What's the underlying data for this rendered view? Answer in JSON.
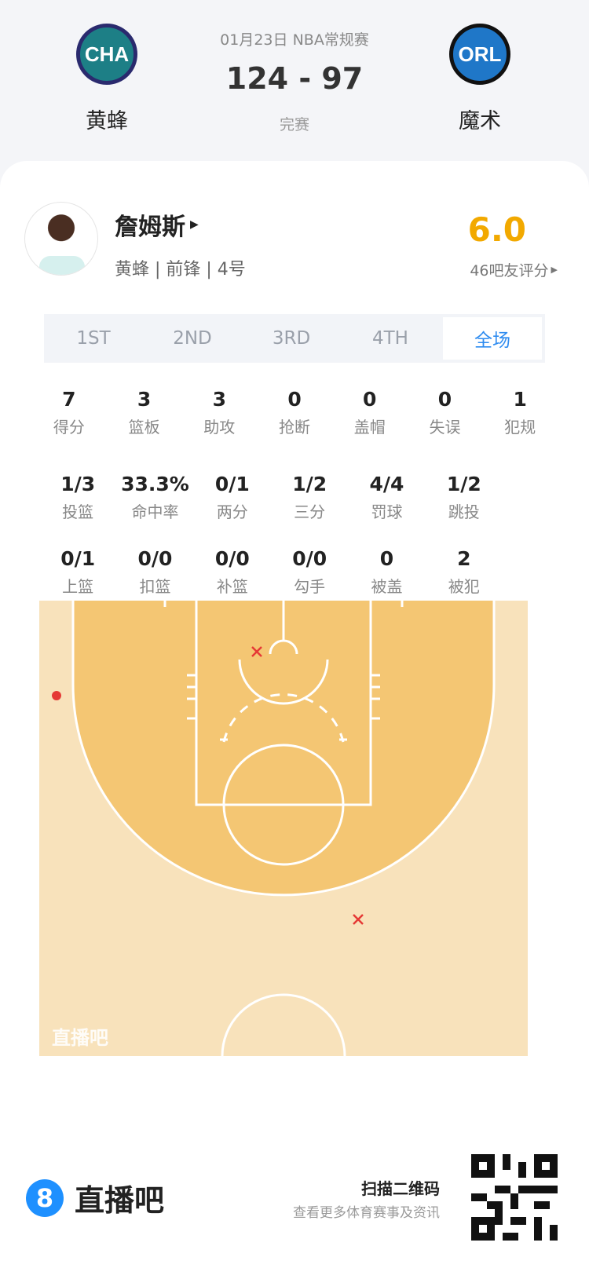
{
  "header": {
    "date_league": "01月23日 NBA常规赛",
    "score": "124 - 97",
    "status": "完赛",
    "home": {
      "abbr": "CHA",
      "name": "黄蜂",
      "color": "#1d7f86"
    },
    "away": {
      "abbr": "ORL",
      "name": "魔术",
      "color": "#1f77c8"
    }
  },
  "player": {
    "name": "詹姆斯",
    "info": "黄蜂 | 前锋 | 4号",
    "rating": "6.0",
    "rating_label": "46吧友评分",
    "rating_color": "#f2a900"
  },
  "tabs": [
    {
      "label": "1ST"
    },
    {
      "label": "2ND"
    },
    {
      "label": "3RD"
    },
    {
      "label": "4TH"
    },
    {
      "label": "全场",
      "active": true
    }
  ],
  "stats_rows": [
    [
      {
        "v": "7",
        "l": "得分"
      },
      {
        "v": "3",
        "l": "篮板"
      },
      {
        "v": "3",
        "l": "助攻"
      },
      {
        "v": "0",
        "l": "抢断"
      },
      {
        "v": "0",
        "l": "盖帽"
      },
      {
        "v": "0",
        "l": "失误"
      },
      {
        "v": "1",
        "l": "犯规"
      }
    ],
    [
      {
        "v": "1/3",
        "l": "投篮"
      },
      {
        "v": "33.3%",
        "l": "命中率"
      },
      {
        "v": "0/1",
        "l": "两分"
      },
      {
        "v": "1/2",
        "l": "三分"
      },
      {
        "v": "4/4",
        "l": "罚球"
      },
      {
        "v": "1/2",
        "l": "跳投"
      }
    ],
    [
      {
        "v": "0/1",
        "l": "上篮"
      },
      {
        "v": "0/0",
        "l": "扣篮"
      },
      {
        "v": "0/0",
        "l": "补篮"
      },
      {
        "v": "0/0",
        "l": "勾手"
      },
      {
        "v": "0",
        "l": "被盖"
      },
      {
        "v": "2",
        "l": "被犯"
      }
    ]
  ],
  "shot_chart": {
    "watermark": "直播吧",
    "shots": [
      {
        "result": "made",
        "zone": "left corner three"
      },
      {
        "result": "missed",
        "zone": "near basket"
      },
      {
        "result": "missed",
        "zone": "right wing three"
      }
    ]
  },
  "footer": {
    "brand": "直播吧",
    "brand_icon": "8",
    "scan_title": "扫描二维码",
    "scan_sub": "查看更多体育赛事及资讯"
  }
}
